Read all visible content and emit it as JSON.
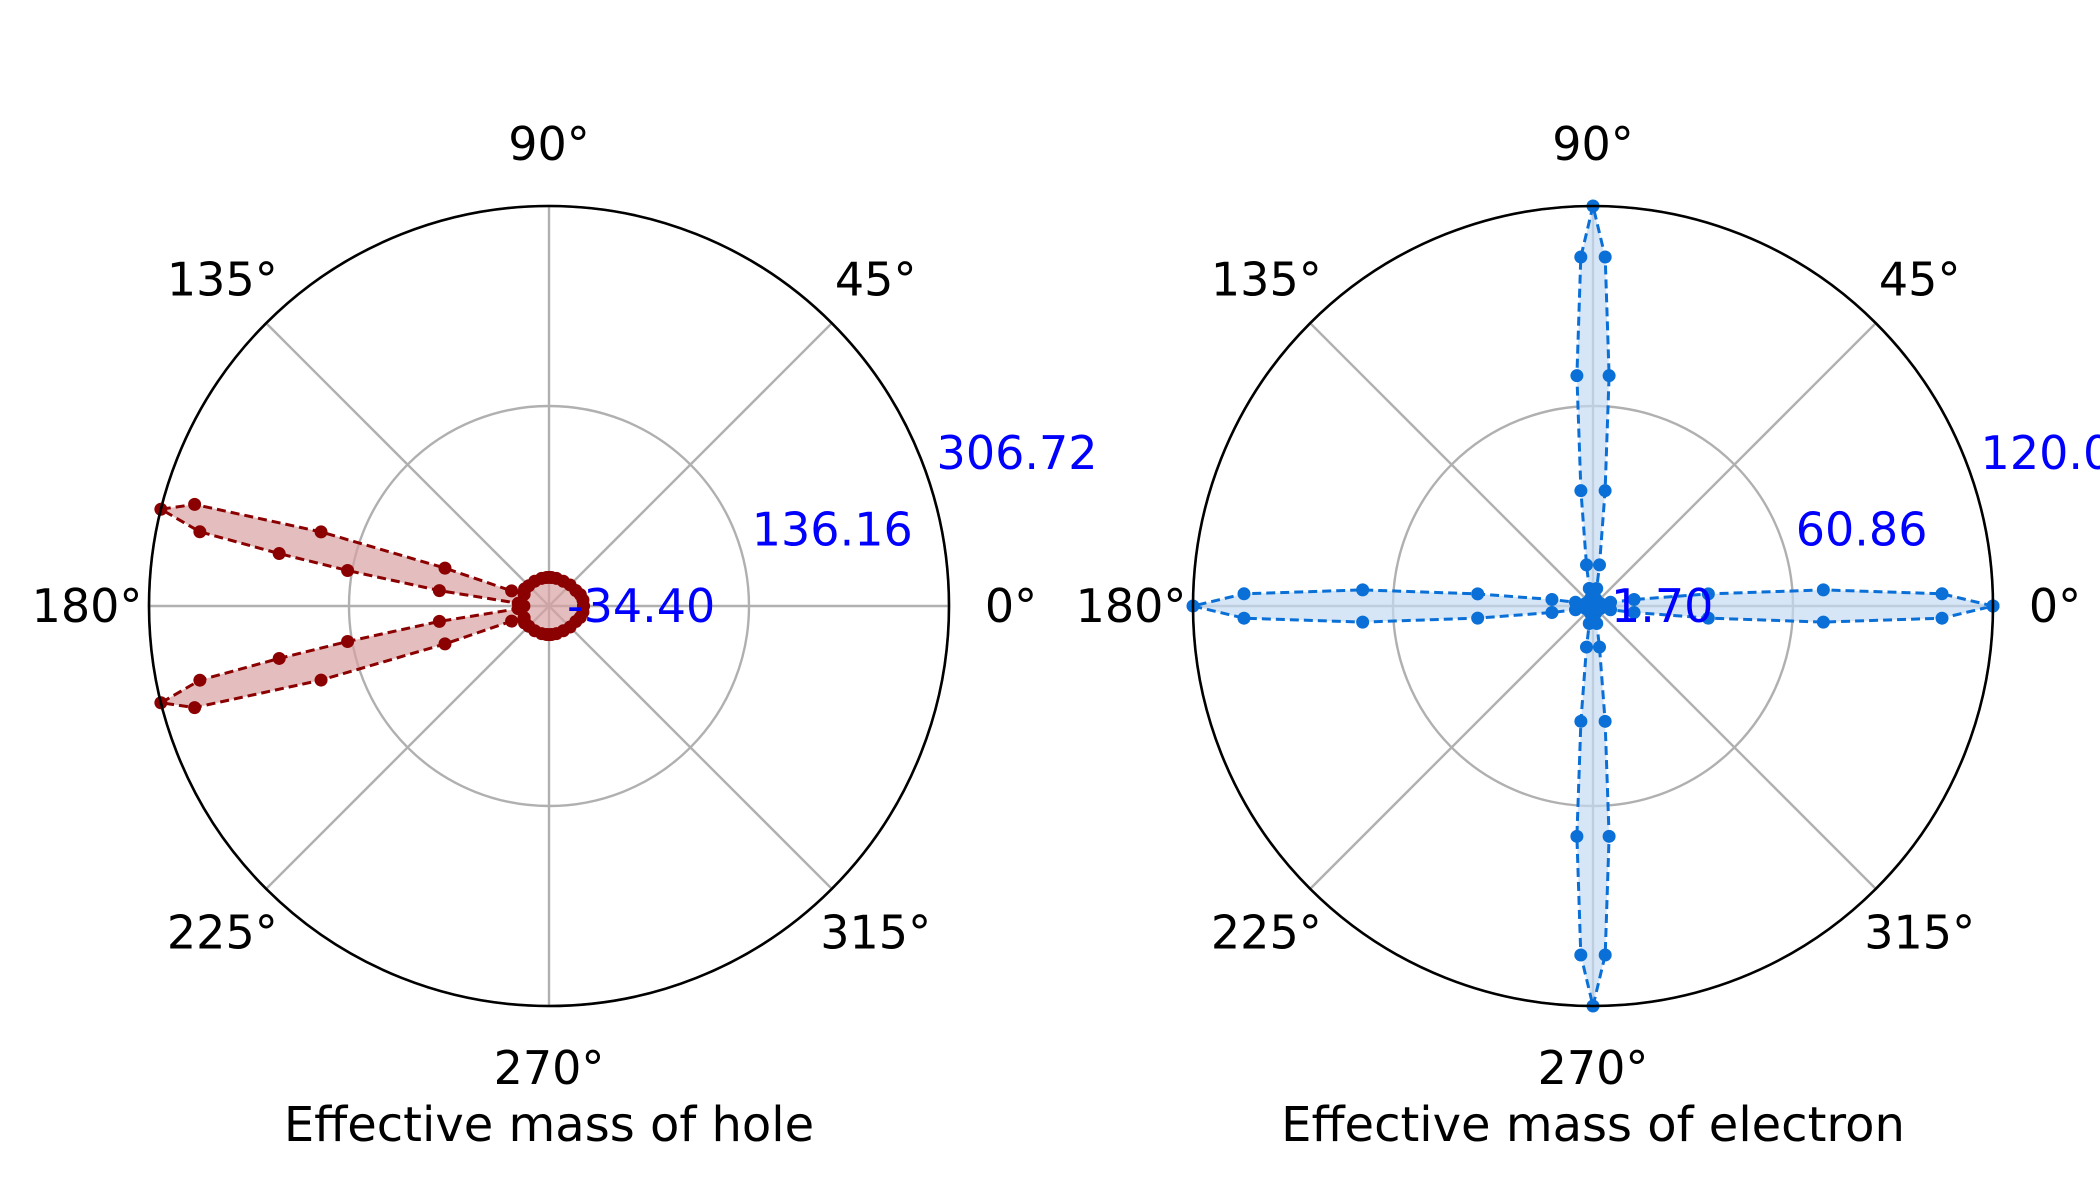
{
  "chart_data": [
    {
      "type": "polar",
      "xlabel": "Effective mass of hole",
      "angle_ticks": [
        "0°",
        "45°",
        "90°",
        "135°",
        "180°",
        "225°",
        "270°",
        "315°"
      ],
      "rlim": [
        -34.4,
        306.72
      ],
      "radial_ticks": [
        -34.4,
        136.16,
        306.72
      ],
      "radial_tick_labels": [
        "-34.40",
        "136.16",
        "306.72"
      ],
      "radial_tick_color": "#0000ff",
      "grid": true,
      "line_color": "#8b0000",
      "fill_color": "#d9a3a3",
      "line_style": "dashed",
      "series": [
        {
          "theta_deg": [
            0,
            10,
            20,
            30,
            45,
            60,
            75,
            85,
            90,
            95,
            105,
            120,
            135,
            145,
            150,
            155,
            158,
            160,
            162,
            164,
            166,
            168,
            169,
            170,
            172,
            175,
            178,
            180,
            182,
            185,
            188,
            190,
            191,
            192,
            194,
            196,
            198,
            200,
            202,
            205,
            210,
            215,
            225,
            240,
            255,
            265,
            270,
            275,
            285,
            300,
            315,
            330,
            340,
            350,
            360
          ],
          "r": [
            -5,
            -5,
            -6,
            -8,
            -9,
            -10,
            -10,
            -10,
            -10,
            -10,
            -10,
            -10,
            -10,
            -9,
            -10,
            -11,
            0,
            60,
            170,
            280,
            306.72,
            270,
            200,
            140,
            60,
            -8,
            -12,
            -13,
            -12,
            -8,
            60,
            140,
            200,
            270,
            306.72,
            280,
            170,
            60,
            0,
            -11,
            -10,
            -9,
            -10,
            -10,
            -10,
            -10,
            -10,
            -10,
            -10,
            -10,
            -9,
            -8,
            -6,
            -5,
            -5
          ]
        }
      ]
    },
    {
      "type": "polar",
      "xlabel": "Effective mass of electron",
      "angle_ticks": [
        "0°",
        "45°",
        "90°",
        "135°",
        "180°",
        "225°",
        "270°",
        "315°"
      ],
      "rlim": [
        1.7,
        120.02
      ],
      "radial_ticks": [
        1.7,
        60.86,
        120.02
      ],
      "radial_tick_labels": [
        "1.70",
        "60.86",
        "120.0"
      ],
      "radial_tick_color": "#0000ff",
      "grid": true,
      "line_color": "#0a6fd6",
      "fill_color": "#c6dcf2",
      "line_style": "dashed",
      "series": [
        {
          "theta_deg": [
            0,
            2,
            4,
            6,
            9,
            12,
            20,
            40,
            70,
            78,
            81,
            84,
            86,
            88,
            90,
            92,
            94,
            96,
            99,
            102,
            110,
            130,
            160,
            168,
            171,
            174,
            176,
            178,
            180,
            182,
            184,
            186,
            189,
            192,
            200,
            220,
            250,
            258,
            261,
            264,
            266,
            268,
            270,
            272,
            274,
            276,
            279,
            282,
            290,
            310,
            340,
            348,
            351,
            354,
            356,
            358,
            360
          ],
          "r": [
            120.02,
            105,
            70,
            36,
            14,
            7,
            4,
            3,
            4,
            7,
            14,
            36,
            70,
            105,
            120.02,
            105,
            70,
            36,
            14,
            7,
            4,
            3,
            4,
            7,
            14,
            36,
            70,
            105,
            120.02,
            105,
            70,
            36,
            14,
            7,
            4,
            3,
            4,
            7,
            14,
            36,
            70,
            105,
            120.02,
            105,
            70,
            36,
            14,
            7,
            4,
            3,
            4,
            7,
            14,
            36,
            70,
            105,
            120.02
          ]
        }
      ]
    }
  ]
}
